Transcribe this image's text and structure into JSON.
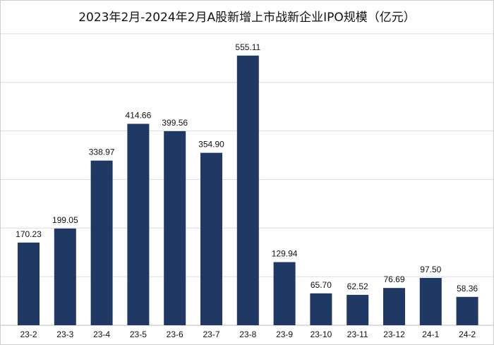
{
  "chart_data": {
    "type": "bar",
    "title": "2023年2月-2024年2月A股新增上市战新企业IPO规模（亿元）",
    "xlabel": "",
    "ylabel": "",
    "categories": [
      "23-2",
      "23-3",
      "23-4",
      "23-5",
      "23-6",
      "23-7",
      "23-8",
      "23-9",
      "23-10",
      "23-11",
      "23-12",
      "24-1",
      "24-2"
    ],
    "values": [
      170.23,
      199.05,
      338.97,
      414.66,
      399.56,
      354.9,
      555.11,
      129.94,
      65.7,
      62.52,
      76.69,
      97.5,
      58.36
    ],
    "value_labels": [
      "170.23",
      "199.05",
      "338.97",
      "414.66",
      "399.56",
      "354.90",
      "555.11",
      "129.94",
      "65.70",
      "62.52",
      "76.69",
      "97.50",
      "58.36"
    ],
    "ylim": [
      0,
      600
    ],
    "grid": true,
    "legend": "none",
    "colors": {
      "bar": "#1f3864",
      "grid": "#dcdcdc"
    }
  }
}
